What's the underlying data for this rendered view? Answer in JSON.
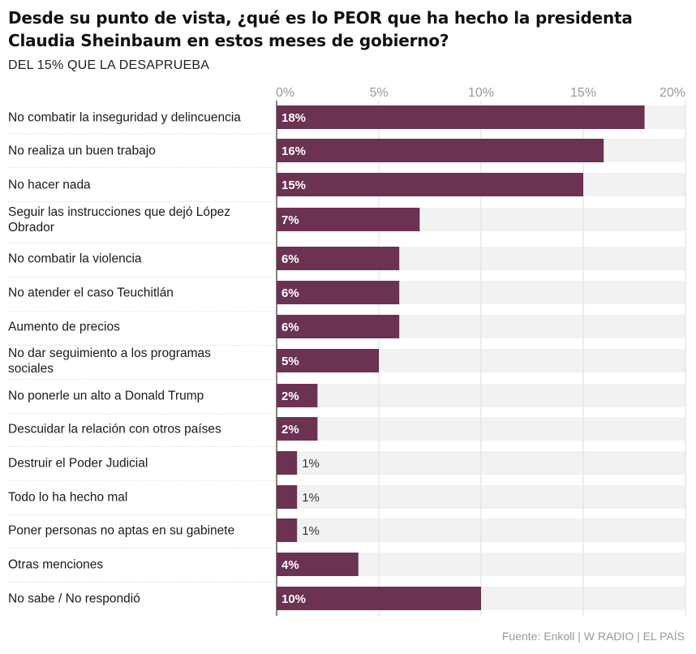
{
  "title": "Desde su punto de vista, ¿qué es lo PEOR que ha hecho la presidenta Claudia Sheinbaum en estos meses de gobierno?",
  "subtitle": "DEL 15% QUE LA DESAPRUEBA",
  "source": "Fuente: Enkoll | W RADIO | EL PAÍS",
  "colors": {
    "bar": "#6b3252",
    "track": "#f2f2f2",
    "grid": "#dddddd",
    "axis_text": "#9a9a9a"
  },
  "chart_data": {
    "type": "bar",
    "orientation": "horizontal",
    "xlim": [
      0,
      20
    ],
    "ticks": [
      0,
      5,
      10,
      15,
      20
    ],
    "tick_labels": [
      "0%",
      "5%",
      "10%",
      "15%",
      "20%"
    ],
    "categories": [
      "No combatir la inseguridad y delincuencia",
      "No realiza un buen trabajo",
      "No hacer nada",
      "Seguir las instrucciones que dejó López Obrador",
      "No combatir la violencia",
      "No atender el caso Teuchitlán",
      "Aumento de precios",
      "No dar seguimiento a los programas sociales",
      "No ponerle un alto a Donald Trump",
      "Descuidar la relación con otros países",
      "Destruir el Poder Judicial",
      "Todo lo ha hecho mal",
      "Poner personas no aptas en su gabinete",
      "Otras menciones",
      "No sabe / No respondió"
    ],
    "values": [
      18,
      16,
      15,
      7,
      6,
      6,
      6,
      5,
      2,
      2,
      1,
      1,
      1,
      4,
      10
    ],
    "value_labels": [
      "18%",
      "16%",
      "15%",
      "7%",
      "6%",
      "6%",
      "6%",
      "5%",
      "2%",
      "2%",
      "1%",
      "1%",
      "1%",
      "4%",
      "10%"
    ],
    "grid": true
  }
}
